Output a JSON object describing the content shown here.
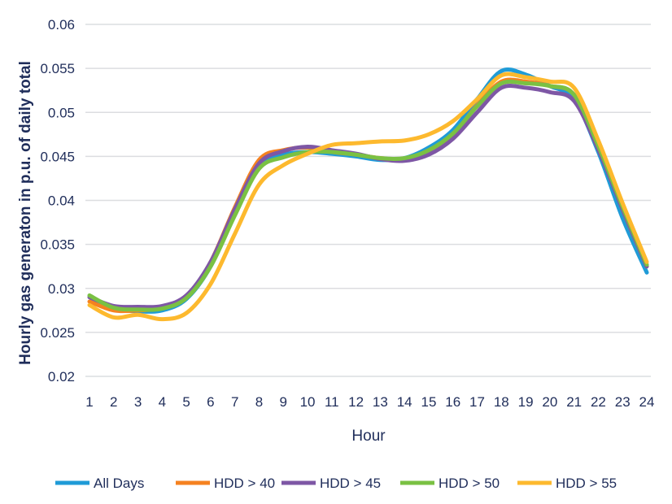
{
  "chart_data": {
    "type": "line",
    "title": "",
    "xlabel": "Hour",
    "ylabel": "Hourly gas generaton in p.u. of daily total",
    "x": [
      1,
      2,
      3,
      4,
      5,
      6,
      7,
      8,
      9,
      10,
      11,
      12,
      13,
      14,
      15,
      16,
      17,
      18,
      19,
      20,
      21,
      22,
      23,
      24
    ],
    "ylim": [
      0.02,
      0.06
    ],
    "yticks": [
      "0.02",
      "0.025",
      "0.03",
      "0.035",
      "0.04",
      "0.045",
      "0.05",
      "0.055",
      "0.06"
    ],
    "grid": true,
    "legend": "bottom",
    "series": [
      {
        "name": "All Days",
        "color": "#1f9bd7",
        "values": [
          0.029,
          0.0277,
          0.0274,
          0.0275,
          0.0288,
          0.0325,
          0.0385,
          0.044,
          0.0452,
          0.0455,
          0.0453,
          0.045,
          0.0446,
          0.0448,
          0.046,
          0.048,
          0.0515,
          0.0547,
          0.0543,
          0.053,
          0.0515,
          0.0455,
          0.038,
          0.0318
        ]
      },
      {
        "name": "HDD > 40",
        "color": "#f58220",
        "values": [
          0.0285,
          0.0275,
          0.0275,
          0.0278,
          0.029,
          0.033,
          0.0392,
          0.0446,
          0.0457,
          0.046,
          0.0455,
          0.0452,
          0.0448,
          0.0447,
          0.0457,
          0.0475,
          0.0508,
          0.0535,
          0.0535,
          0.053,
          0.052,
          0.0462,
          0.039,
          0.0325
        ]
      },
      {
        "name": "HDD > 45",
        "color": "#7e57a5",
        "values": [
          0.029,
          0.028,
          0.0279,
          0.028,
          0.0292,
          0.033,
          0.039,
          0.0442,
          0.0456,
          0.0461,
          0.0457,
          0.0453,
          0.0447,
          0.0445,
          0.0452,
          0.047,
          0.05,
          0.0528,
          0.0528,
          0.0523,
          0.0513,
          0.0458,
          0.039,
          0.0325
        ]
      },
      {
        "name": "HDD > 50",
        "color": "#7ac143",
        "values": [
          0.0292,
          0.0278,
          0.0276,
          0.0277,
          0.0289,
          0.0325,
          0.0383,
          0.0436,
          0.0449,
          0.0455,
          0.0455,
          0.0452,
          0.0448,
          0.0448,
          0.0457,
          0.0476,
          0.0507,
          0.0533,
          0.0533,
          0.053,
          0.052,
          0.0462,
          0.0393,
          0.0327
        ]
      },
      {
        "name": "HDD > 55",
        "color": "#fdb92e",
        "values": [
          0.0281,
          0.0267,
          0.027,
          0.0265,
          0.0272,
          0.0305,
          0.0362,
          0.0418,
          0.044,
          0.0453,
          0.0463,
          0.0465,
          0.0467,
          0.0468,
          0.0475,
          0.049,
          0.0515,
          0.0542,
          0.054,
          0.0535,
          0.0528,
          0.0468,
          0.0397,
          0.033
        ]
      }
    ]
  }
}
